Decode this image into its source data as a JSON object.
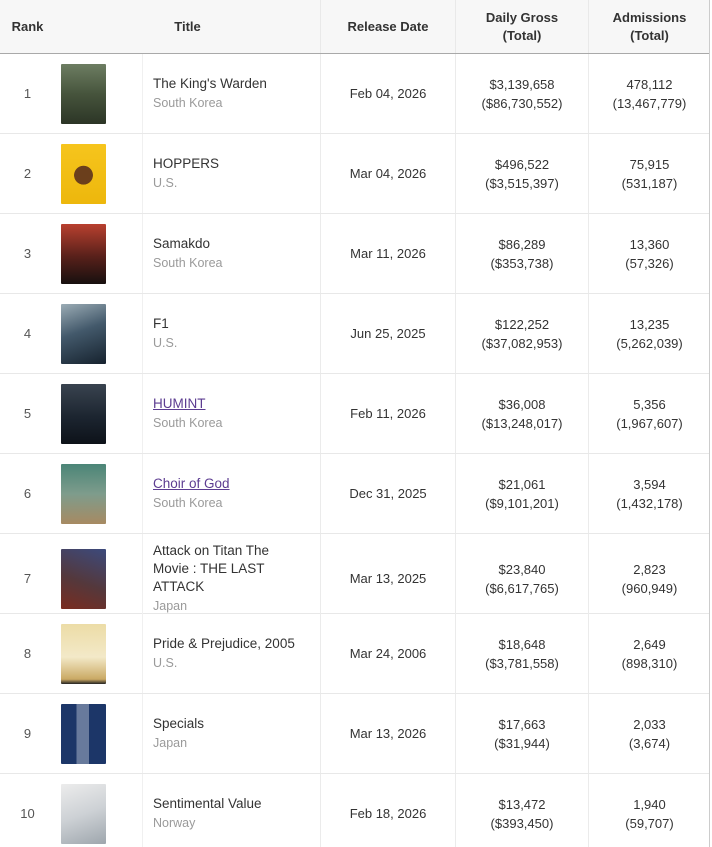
{
  "colors": {
    "link": "#5c3c91",
    "header_bg": "#f7f7f7",
    "header_border": "#a9a9a9",
    "row_border": "#e8e8e8"
  },
  "table": {
    "columns": {
      "rank": "Rank",
      "title": "Title",
      "release_date": "Release Date",
      "daily_gross_line1": "Daily Gross",
      "daily_gross_line2": "(Total)",
      "admissions_line1": "Admissions",
      "admissions_line2": "(Total)"
    },
    "rows": [
      {
        "rank": "1",
        "title": "The King's Warden",
        "title_is_link": false,
        "country": "South Korea",
        "release_date": "Feb 04, 2026",
        "daily_gross": "$3,139,658",
        "daily_gross_total": "($86,730,552)",
        "admissions": "478,112",
        "admissions_total": "(13,467,779)",
        "poster_name": "the-kings-warden-poster",
        "poster_bg": "linear-gradient(180deg,#6d7d62 0%,#46543c 50%,#2c3526 100%)"
      },
      {
        "rank": "2",
        "title": "HOPPERS",
        "title_is_link": false,
        "country": "U.S.",
        "release_date": "Mar 04, 2026",
        "daily_gross": "$496,522",
        "daily_gross_total": "($3,515,397)",
        "admissions": "75,915",
        "admissions_total": "(531,187)",
        "poster_name": "hoppers-poster",
        "poster_bg": "radial-gradient(circle at 50% 52%, #6b3f1c 0 24%, rgba(0,0,0,0) 25%), linear-gradient(180deg,#f6c51d 0%,#edb70c 100%)"
      },
      {
        "rank": "3",
        "title": "Samakdo",
        "title_is_link": false,
        "country": "South Korea",
        "release_date": "Mar 11, 2026",
        "daily_gross": "$86,289",
        "daily_gross_total": "($353,738)",
        "admissions": "13,360",
        "admissions_total": "(57,326)",
        "poster_name": "samakdo-poster",
        "poster_bg": "linear-gradient(180deg,#b8402f 0%,#57201a 55%,#17100f 100%)"
      },
      {
        "rank": "4",
        "title": "F1",
        "title_is_link": false,
        "country": "U.S.",
        "release_date": "Jun 25, 2025",
        "daily_gross": "$122,252",
        "daily_gross_total": "($37,082,953)",
        "admissions": "13,235",
        "admissions_total": "(5,262,039)",
        "poster_name": "f1-poster",
        "poster_bg": "linear-gradient(160deg,#9bacb5 0%,#43596b 45%,#16222e 100%)"
      },
      {
        "rank": "5",
        "title": "HUMINT",
        "title_is_link": true,
        "country": "South Korea",
        "release_date": "Feb 11, 2026",
        "daily_gross": "$36,008",
        "daily_gross_total": "($13,248,017)",
        "admissions": "5,356",
        "admissions_total": "(1,967,607)",
        "poster_name": "humint-poster",
        "poster_bg": "linear-gradient(180deg,#39434f 0%,#1c2530 55%,#0d1219 100%)"
      },
      {
        "rank": "6",
        "title": "Choir of God",
        "title_is_link": true,
        "country": "South Korea",
        "release_date": "Dec 31, 2025",
        "daily_gross": "$21,061",
        "daily_gross_total": "($9,101,201)",
        "admissions": "3,594",
        "admissions_total": "(1,432,178)",
        "poster_name": "choir-of-god-poster",
        "poster_bg": "linear-gradient(180deg,#4b8577 0%,#7e9c8c 50%,#a78a62 100%)"
      },
      {
        "rank": "7",
        "title": "Attack on Titan The Movie : THE LAST ATTACK",
        "title_is_link": false,
        "country": "Japan",
        "release_date": "Mar 13, 2025",
        "daily_gross": "$23,840",
        "daily_gross_total": "($6,617,765)",
        "admissions": "2,823",
        "admissions_total": "(960,949)",
        "poster_name": "attack-on-titan-poster",
        "poster_bg": "linear-gradient(200deg,#3c4a7c 0%,#54383c 55%,#7a2c20 100%)"
      },
      {
        "rank": "8",
        "title": "Pride & Prejudice, 2005",
        "title_is_link": false,
        "country": "U.S.",
        "release_date": "Mar 24, 2006",
        "daily_gross": "$18,648",
        "daily_gross_total": "($3,781,558)",
        "admissions": "2,649",
        "admissions_total": "(898,310)",
        "poster_name": "pride-and-prejudice-poster",
        "poster_bg": "linear-gradient(180deg,#ecdca6 0%,#f3e9c8 55%,#caa964 92%, #222 100%)"
      },
      {
        "rank": "9",
        "title": "Specials",
        "title_is_link": false,
        "country": "Japan",
        "release_date": "Mar 13, 2026",
        "daily_gross": "$17,663",
        "daily_gross_total": "($31,944)",
        "admissions": "2,033",
        "admissions_total": "(3,674)",
        "poster_name": "specials-poster",
        "poster_bg": "linear-gradient(90deg,#1c3668 0 35%, #687a9c 35% 62%, #1c3668 62% 100%), linear-gradient(180deg,#27427c,#0c1830)"
      },
      {
        "rank": "10",
        "title": "Sentimental Value",
        "title_is_link": false,
        "country": "Norway",
        "release_date": "Feb 18, 2026",
        "daily_gross": "$13,472",
        "daily_gross_total": "($393,450)",
        "admissions": "1,940",
        "admissions_total": "(59,707)",
        "poster_name": "sentimental-value-poster",
        "poster_bg": "linear-gradient(160deg,#ececec 0%,#cdd1d5 50%,#9ea6ad 100%)"
      }
    ]
  }
}
